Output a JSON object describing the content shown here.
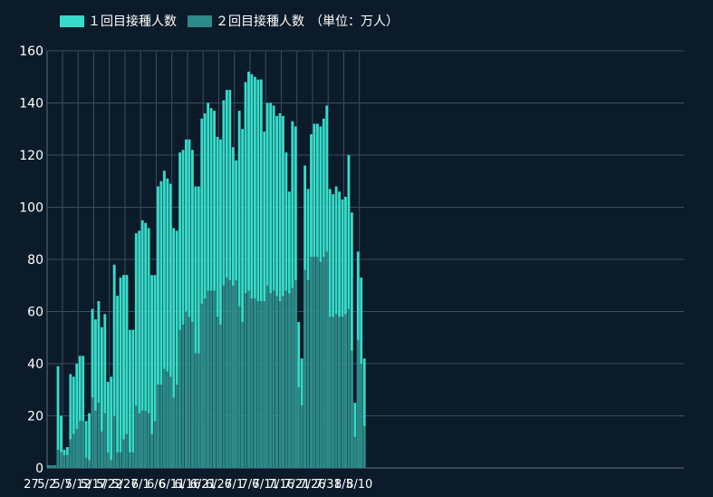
{
  "chart_data": {
    "type": "bar",
    "stacked": false,
    "legend": {
      "position": "top-left",
      "unit": "（単位：万人）"
    },
    "ylim": [
      0,
      160
    ],
    "yticks": [
      0,
      20,
      40,
      60,
      80,
      100,
      120,
      140,
      160
    ],
    "grid": true,
    "xtick_labels": [
      {
        "label": "27",
        "index": -5
      },
      {
        "label": "5/2",
        "index": 0
      },
      {
        "label": "5/7",
        "index": 5
      },
      {
        "label": "5/12",
        "index": 10
      },
      {
        "label": "5/17",
        "index": 15
      },
      {
        "label": "5/22",
        "index": 20
      },
      {
        "label": "5/27",
        "index": 25
      },
      {
        "label": "6/1",
        "index": 30
      },
      {
        "label": "6/6",
        "index": 35
      },
      {
        "label": "6/11",
        "index": 40
      },
      {
        "label": "6/16",
        "index": 45
      },
      {
        "label": "6/21",
        "index": 50
      },
      {
        "label": "6/26",
        "index": 55
      },
      {
        "label": "7/1",
        "index": 60
      },
      {
        "label": "7/6",
        "index": 65
      },
      {
        "label": "7/11",
        "index": 70
      },
      {
        "label": "7/16",
        "index": 75
      },
      {
        "label": "7/21",
        "index": 80
      },
      {
        "label": "7/26",
        "index": 85
      },
      {
        "label": "7/31",
        "index": 90
      },
      {
        "label": "8/5",
        "index": 95
      },
      {
        "label": "8/10",
        "index": 100
      }
    ],
    "series": [
      {
        "name": "１回目接種人数",
        "color": "#35dcc9",
        "values": [
          1,
          1,
          1,
          39,
          20,
          7,
          8,
          36,
          35,
          40,
          43,
          43,
          18,
          21,
          61,
          57,
          64,
          54,
          59,
          33,
          35,
          78,
          66,
          73,
          74,
          74,
          53,
          53,
          90,
          91,
          95,
          94,
          92,
          74,
          74,
          108,
          110,
          114,
          111,
          109,
          92,
          91,
          121,
          122,
          126,
          126,
          122,
          108,
          108,
          134,
          136,
          140,
          138,
          137,
          127,
          126,
          141,
          145,
          145,
          123,
          118,
          137,
          130,
          148,
          152,
          151,
          150,
          149,
          149,
          129,
          140,
          140,
          139,
          135,
          136,
          135,
          121,
          106,
          133,
          131,
          56,
          42,
          116,
          107,
          128,
          132,
          132,
          131,
          134,
          139,
          107,
          105,
          108,
          106,
          103,
          104,
          120,
          98,
          25,
          83,
          73,
          42
        ]
      },
      {
        "name": "２回目接種人数",
        "color": "#2c8a88",
        "values": [
          1,
          1,
          1,
          7,
          6,
          5,
          5,
          11,
          13,
          15,
          18,
          18,
          4,
          3,
          27,
          22,
          25,
          14,
          21,
          6,
          3,
          20,
          6,
          6,
          11,
          13,
          6,
          6,
          24,
          21,
          22,
          22,
          21,
          13,
          18,
          32,
          32,
          38,
          37,
          35,
          27,
          32,
          53,
          55,
          60,
          58,
          56,
          44,
          44,
          63,
          65,
          68,
          68,
          68,
          58,
          55,
          70,
          73,
          72,
          70,
          72,
          62,
          56,
          67,
          68,
          65,
          65,
          64,
          64,
          64,
          70,
          67,
          68,
          66,
          64,
          66,
          68,
          67,
          69,
          72,
          31,
          24,
          76,
          72,
          81,
          81,
          81,
          79,
          81,
          83,
          58,
          58,
          59,
          58,
          58,
          59,
          61,
          45,
          12,
          49,
          40,
          16
        ]
      }
    ]
  }
}
